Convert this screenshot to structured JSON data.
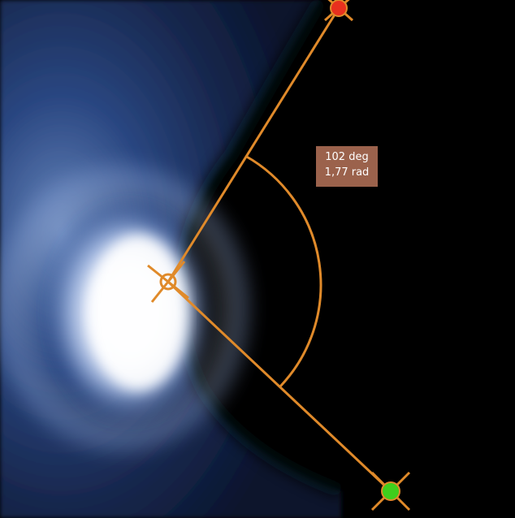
{
  "measurement": {
    "type": "angle",
    "degrees_label": "102 deg",
    "radians_label": "1,77 rad"
  },
  "colors": {
    "measure_line": "#e08a2a",
    "handle_top": "#e8301e",
    "handle_bottom": "#3fcf1c",
    "label_bg": "#a86a52",
    "label_text": "#ffffff",
    "glow": "#ffffff",
    "haze": "#2a4a88",
    "background": "#000000"
  },
  "handles": {
    "vertex": {
      "icon": "vertex-handle-icon"
    },
    "top": {
      "icon": "endpoint-handle-icon"
    },
    "bottom": {
      "icon": "endpoint-handle-icon"
    }
  }
}
